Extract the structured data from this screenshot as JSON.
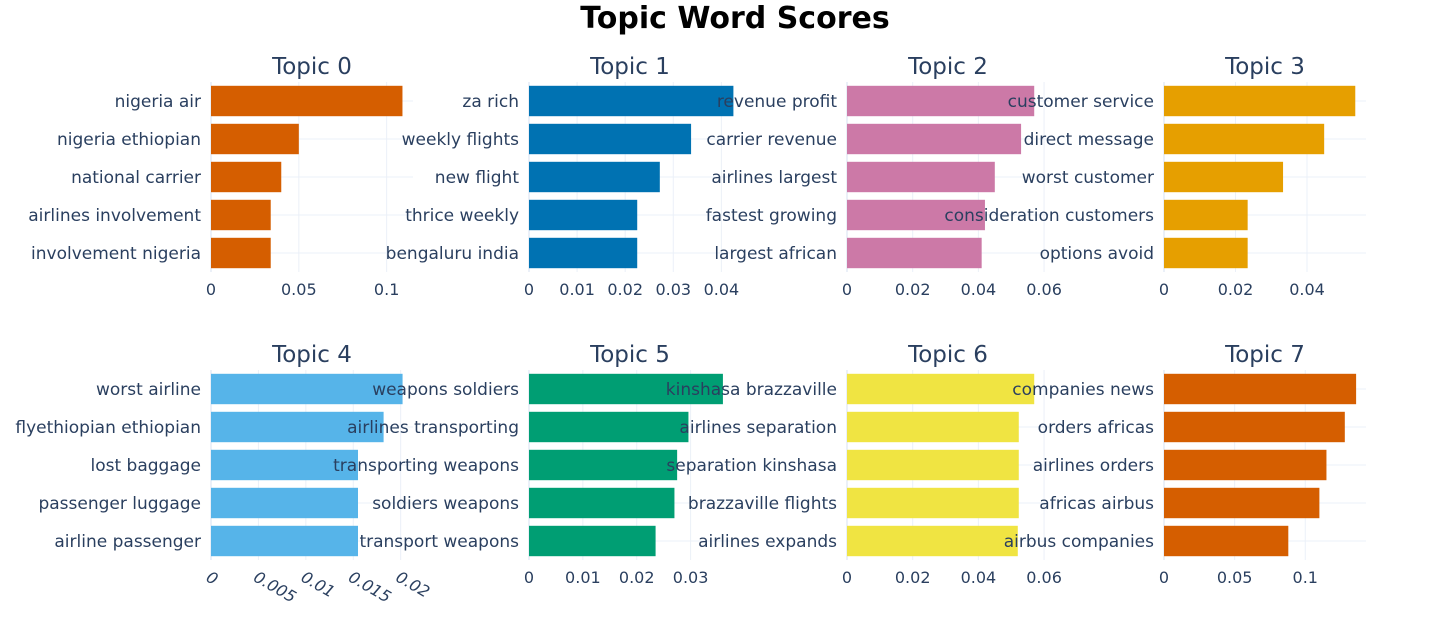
{
  "title": "Topic Word Scores",
  "chart_data": [
    {
      "type": "bar",
      "orientation": "horizontal",
      "title": "Topic 0",
      "color": "#D55E00",
      "categories": [
        "nigeria air",
        "nigeria ethiopian",
        "national carrier",
        "airlines involvement",
        "involvement nigeria"
      ],
      "values": [
        0.109,
        0.05,
        0.04,
        0.034,
        0.034
      ],
      "xlim": [
        0,
        0.115
      ],
      "xticks": [
        0,
        0.05,
        0.1
      ],
      "xtick_labels": [
        "0",
        "0.05",
        "0.1"
      ],
      "grid": true
    },
    {
      "type": "bar",
      "orientation": "horizontal",
      "title": "Topic 1",
      "color": "#0072B2",
      "categories": [
        "za rich",
        "weekly flights",
        "new flight",
        "thrice weekly",
        "bengaluru india"
      ],
      "values": [
        0.0425,
        0.0337,
        0.0272,
        0.0225,
        0.0225
      ],
      "xlim": [
        0,
        0.042
      ],
      "xticks": [
        0,
        0.01,
        0.02,
        0.03,
        0.04
      ],
      "xtick_labels": [
        "0",
        "0.01",
        "0.02",
        "0.03",
        "0.04"
      ],
      "grid": true
    },
    {
      "type": "bar",
      "orientation": "horizontal",
      "title": "Topic 2",
      "color": "#CC79A7",
      "categories": [
        "revenue profit",
        "carrier revenue",
        "airlines largest",
        "fastest growing",
        "largest african"
      ],
      "values": [
        0.057,
        0.053,
        0.045,
        0.042,
        0.041
      ],
      "xlim": [
        0,
        0.0615
      ],
      "xticks": [
        0,
        0.02,
        0.04,
        0.06
      ],
      "xtick_labels": [
        "0",
        "0.02",
        "0.04",
        "0.06"
      ],
      "grid": true
    },
    {
      "type": "bar",
      "orientation": "horizontal",
      "title": "Topic 3",
      "color": "#E69F00",
      "categories": [
        "customer service",
        "direct message",
        "worst customer",
        "consideration customers",
        "options avoid"
      ],
      "values": [
        0.0535,
        0.0448,
        0.0333,
        0.0234,
        0.0234
      ],
      "xlim": [
        0,
        0.0565
      ],
      "xticks": [
        0,
        0.02,
        0.04
      ],
      "xtick_labels": [
        "0",
        "0.02",
        "0.04"
      ],
      "grid": true
    },
    {
      "type": "bar",
      "orientation": "horizontal",
      "title": "Topic 4",
      "color": "#56B4E9",
      "categories": [
        "worst airline",
        "flyethiopian ethiopian",
        "lost baggage",
        "passenger luggage",
        "airline passenger"
      ],
      "values": [
        0.0202,
        0.0182,
        0.0155,
        0.0155,
        0.0155
      ],
      "xlim": [
        0,
        0.0213
      ],
      "xticks": [
        0,
        0.005,
        0.01,
        0.015,
        0.02
      ],
      "xtick_labels": [
        "0",
        "0.005",
        "0.01",
        "0.015",
        "0.02"
      ],
      "xtick_rotation": 30,
      "grid": true
    },
    {
      "type": "bar",
      "orientation": "horizontal",
      "title": "Topic 5",
      "color": "#009E73",
      "categories": [
        "weapons soldiers",
        "airlines transporting",
        "transporting weapons",
        "soldiers weapons",
        "transport weapons"
      ],
      "values": [
        0.036,
        0.0296,
        0.0275,
        0.027,
        0.0235
      ],
      "xlim": [
        0,
        0.0375
      ],
      "xticks": [
        0,
        0.01,
        0.02,
        0.03
      ],
      "xtick_labels": [
        "0",
        "0.01",
        "0.02",
        "0.03"
      ],
      "grid": true
    },
    {
      "type": "bar",
      "orientation": "horizontal",
      "title": "Topic 6",
      "color": "#F0E442",
      "categories": [
        "kinshasa brazzaville",
        "airlines separation",
        "separation kinshasa",
        "brazzaville flights",
        "airlines expands"
      ],
      "values": [
        0.057,
        0.0523,
        0.0523,
        0.0523,
        0.052
      ],
      "xlim": [
        0,
        0.0615
      ],
      "xticks": [
        0,
        0.02,
        0.04,
        0.06
      ],
      "xtick_labels": [
        "0",
        "0.02",
        "0.04",
        "0.06"
      ],
      "grid": true
    },
    {
      "type": "bar",
      "orientation": "horizontal",
      "title": "Topic 7",
      "color": "#D55E00",
      "categories": [
        "companies news",
        "orders africas",
        "airlines orders",
        "africas airbus",
        "airbus companies"
      ],
      "values": [
        0.136,
        0.128,
        0.115,
        0.11,
        0.088
      ],
      "xlim": [
        0,
        0.143
      ],
      "xticks": [
        0,
        0.05,
        0.1
      ],
      "xtick_labels": [
        "0",
        "0.05",
        "0.1"
      ],
      "grid": true
    }
  ]
}
